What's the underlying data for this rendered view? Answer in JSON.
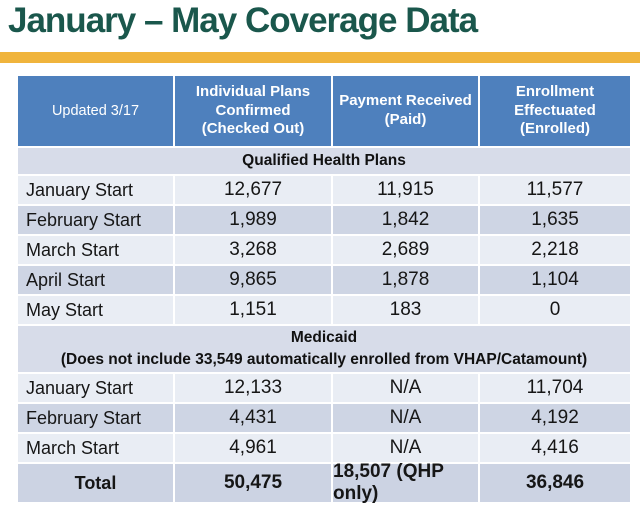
{
  "title": "January – May Coverage Data",
  "colors": {
    "title_green": "#1a574c",
    "gold_bar": "#f0b43c",
    "header_blue": "#4e80bd",
    "row_light": "#e9edf4",
    "row_dark": "#ced5e4",
    "band_blue_grey": "#d7dce9",
    "total_row_bg": "#ccd3e3"
  },
  "table": {
    "headers": [
      "Updated 3/17",
      "Individual Plans Confirmed (Checked Out)",
      "Payment Received (Paid)",
      "Enrollment Effectuated (Enrolled)"
    ],
    "qhp_band": "Qualified Health Plans",
    "qhp_rows": [
      {
        "label": "January Start",
        "confirmed": "12,677",
        "paid": "11,915",
        "enrolled": "11,577"
      },
      {
        "label": "February Start",
        "confirmed": "1,989",
        "paid": "1,842",
        "enrolled": "1,635"
      },
      {
        "label": "March Start",
        "confirmed": "3,268",
        "paid": "2,689",
        "enrolled": "2,218"
      },
      {
        "label": "April Start",
        "confirmed": "9,865",
        "paid": "1,878",
        "enrolled": "1,104"
      },
      {
        "label": "May Start",
        "confirmed": "1,151",
        "paid": "183",
        "enrolled": "0"
      }
    ],
    "medicaid_band_line1": "Medicaid",
    "medicaid_band_line2": "(Does not include 33,549 automatically enrolled from VHAP/Catamount)",
    "medicaid_rows": [
      {
        "label": "January Start",
        "confirmed": "12,133",
        "paid": "N/A",
        "enrolled": "11,704"
      },
      {
        "label": "February Start",
        "confirmed": "4,431",
        "paid": "N/A",
        "enrolled": "4,192"
      },
      {
        "label": "March Start",
        "confirmed": "4,961",
        "paid": "N/A",
        "enrolled": "4,416"
      }
    ],
    "total_row": {
      "label": "Total",
      "confirmed": "50,475",
      "paid": "18,507 (QHP only)",
      "enrolled": "36,846"
    }
  }
}
